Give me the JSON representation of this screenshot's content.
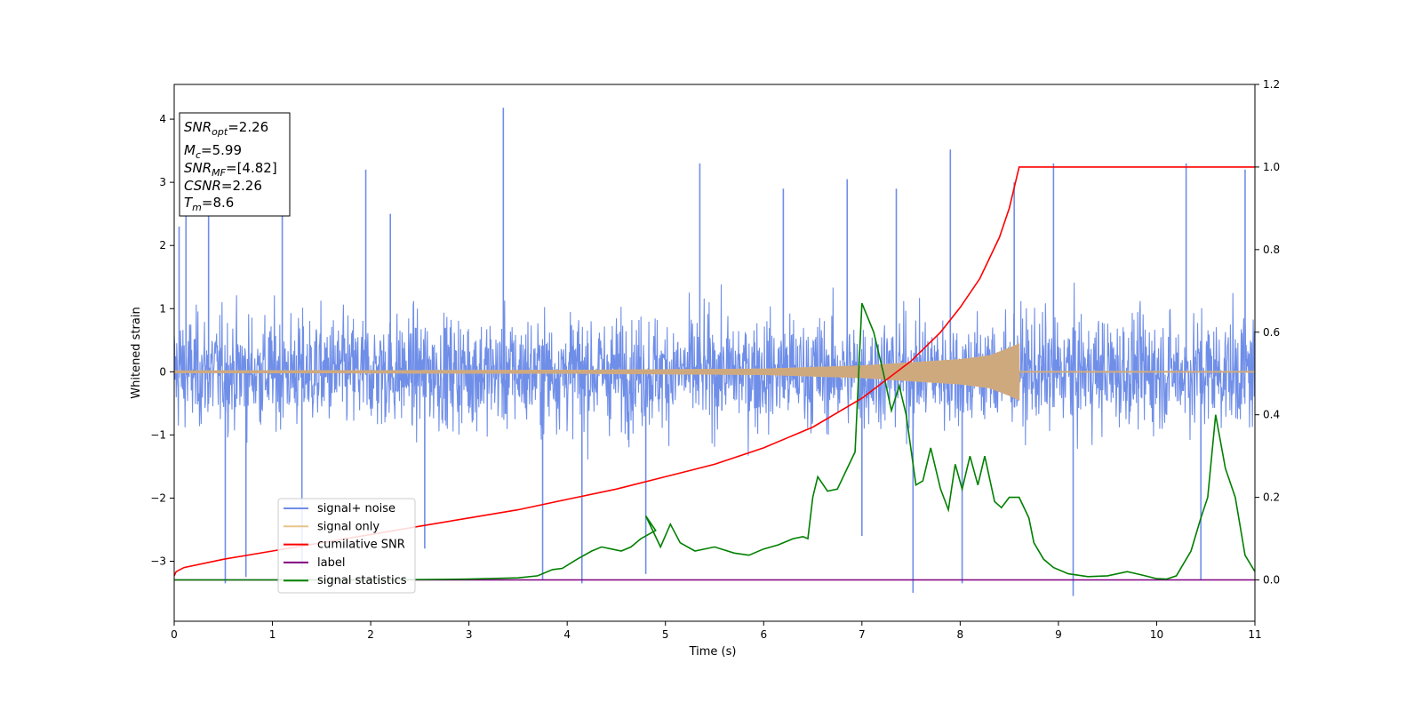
{
  "chart_data": {
    "type": "line",
    "title": "",
    "xlabel": "Time (s)",
    "ylabel": "Whitened strain",
    "ylabel_right": "",
    "xlim": [
      0,
      11
    ],
    "ylim": [
      -3.95,
      4.55
    ],
    "ylim_right": [
      -0.1,
      1.2
    ],
    "x_ticks": [
      0,
      1,
      2,
      3,
      4,
      5,
      6,
      7,
      8,
      9,
      10,
      11
    ],
    "y_ticks": [
      -3,
      -2,
      -1,
      0,
      1,
      2,
      3,
      4
    ],
    "y_ticks_right": [
      0.0,
      0.2,
      0.4,
      0.6,
      0.8,
      1.0,
      1.2
    ],
    "grid": false,
    "legend_position": "lower-left",
    "colors": {
      "noise": "#6f8ee8",
      "signal": "#e8c48a",
      "cumulative": "#ff0000",
      "label": "#800080",
      "statistics": "#008000"
    },
    "annotation": {
      "snr_opt": {
        "main": "SNR",
        "sub": "opt",
        "value": "=2.26"
      },
      "mc": {
        "main": "M",
        "sub": "c",
        "value": "=5.99"
      },
      "snr_mf": {
        "main": "SNR",
        "sub": "MF",
        "value": "=[4.82]"
      },
      "csnr": {
        "main": "CSNR",
        "value": "=2.26"
      },
      "tm": {
        "main": "T",
        "sub": "m",
        "value": "=8.6"
      }
    },
    "series": [
      {
        "name": "signal+ noise",
        "axis": "left",
        "description_values": "noise band about ±1.3 with spikes",
        "spikes": [
          {
            "x": 0.05,
            "y": 2.3
          },
          {
            "x": 0.12,
            "y": 2.6
          },
          {
            "x": 0.35,
            "y": 2.7
          },
          {
            "x": 0.52,
            "y": -3.35
          },
          {
            "x": 0.73,
            "y": -3.25
          },
          {
            "x": 1.1,
            "y": 2.9
          },
          {
            "x": 1.3,
            "y": -3.1
          },
          {
            "x": 1.95,
            "y": 3.2
          },
          {
            "x": 2.2,
            "y": 2.5
          },
          {
            "x": 2.55,
            "y": -2.8
          },
          {
            "x": 3.35,
            "y": 4.18
          },
          {
            "x": 3.75,
            "y": -3.3
          },
          {
            "x": 4.15,
            "y": -3.35
          },
          {
            "x": 4.8,
            "y": -3.2
          },
          {
            "x": 5.35,
            "y": 3.3
          },
          {
            "x": 6.2,
            "y": 2.9
          },
          {
            "x": 6.85,
            "y": 3.05
          },
          {
            "x": 7.0,
            "y": -2.6
          },
          {
            "x": 7.35,
            "y": 2.9
          },
          {
            "x": 7.52,
            "y": -3.5
          },
          {
            "x": 7.9,
            "y": 3.52
          },
          {
            "x": 8.02,
            "y": -3.35
          },
          {
            "x": 8.55,
            "y": 3.0
          },
          {
            "x": 8.95,
            "y": 3.3
          },
          {
            "x": 9.15,
            "y": -3.55
          },
          {
            "x": 10.3,
            "y": 3.3
          },
          {
            "x": 10.45,
            "y": -3.3
          },
          {
            "x": 10.9,
            "y": 3.2
          }
        ]
      },
      {
        "name": "signal only",
        "axis": "left",
        "t_merger": 8.6,
        "amplitude": [
          {
            "x": 0,
            "y": 0.02
          },
          {
            "x": 4,
            "y": 0.03
          },
          {
            "x": 6,
            "y": 0.05
          },
          {
            "x": 7,
            "y": 0.1
          },
          {
            "x": 7.5,
            "y": 0.15
          },
          {
            "x": 8,
            "y": 0.2
          },
          {
            "x": 8.3,
            "y": 0.26
          },
          {
            "x": 8.5,
            "y": 0.38
          },
          {
            "x": 8.6,
            "y": 0.45
          }
        ]
      },
      {
        "name": "cumilative SNR",
        "axis": "right",
        "points": [
          {
            "x": 0,
            "y": 0.01
          },
          {
            "x": 0.02,
            "y": 0.02
          },
          {
            "x": 0.1,
            "y": 0.03
          },
          {
            "x": 0.5,
            "y": 0.05
          },
          {
            "x": 1,
            "y": 0.07
          },
          {
            "x": 1.5,
            "y": 0.09
          },
          {
            "x": 2,
            "y": 0.11
          },
          {
            "x": 2.5,
            "y": 0.13
          },
          {
            "x": 3,
            "y": 0.15
          },
          {
            "x": 3.5,
            "y": 0.17
          },
          {
            "x": 4,
            "y": 0.195
          },
          {
            "x": 4.5,
            "y": 0.22
          },
          {
            "x": 5,
            "y": 0.25
          },
          {
            "x": 5.5,
            "y": 0.28
          },
          {
            "x": 6,
            "y": 0.32
          },
          {
            "x": 6.5,
            "y": 0.37
          },
          {
            "x": 7,
            "y": 0.44
          },
          {
            "x": 7.5,
            "y": 0.53
          },
          {
            "x": 7.8,
            "y": 0.6
          },
          {
            "x": 8,
            "y": 0.66
          },
          {
            "x": 8.2,
            "y": 0.73
          },
          {
            "x": 8.4,
            "y": 0.83
          },
          {
            "x": 8.5,
            "y": 0.9
          },
          {
            "x": 8.58,
            "y": 0.98
          },
          {
            "x": 8.6,
            "y": 1.0
          },
          {
            "x": 11,
            "y": 1.0
          }
        ]
      },
      {
        "name": "label",
        "axis": "right",
        "points": [
          {
            "x": 0,
            "y": 0.0
          },
          {
            "x": 11,
            "y": 0.0
          }
        ]
      },
      {
        "name": "signal statistics",
        "axis": "right",
        "points": [
          {
            "x": 0,
            "y": 0.0
          },
          {
            "x": 1,
            "y": 0.0
          },
          {
            "x": 2,
            "y": 0.0
          },
          {
            "x": 3,
            "y": 0.002
          },
          {
            "x": 3.5,
            "y": 0.005
          },
          {
            "x": 3.7,
            "y": 0.01
          },
          {
            "x": 3.85,
            "y": 0.025
          },
          {
            "x": 3.95,
            "y": 0.028
          },
          {
            "x": 4.1,
            "y": 0.05
          },
          {
            "x": 4.25,
            "y": 0.07
          },
          {
            "x": 4.35,
            "y": 0.08
          },
          {
            "x": 4.45,
            "y": 0.075
          },
          {
            "x": 4.55,
            "y": 0.07
          },
          {
            "x": 4.65,
            "y": 0.08
          },
          {
            "x": 4.75,
            "y": 0.1
          },
          {
            "x": 4.9,
            "y": 0.12
          },
          {
            "x": 4.8,
            "y": 0.155
          },
          {
            "x": 4.95,
            "y": 0.08
          },
          {
            "x": 5.05,
            "y": 0.135
          },
          {
            "x": 5.15,
            "y": 0.09
          },
          {
            "x": 5.3,
            "y": 0.07
          },
          {
            "x": 5.5,
            "y": 0.08
          },
          {
            "x": 5.7,
            "y": 0.065
          },
          {
            "x": 5.85,
            "y": 0.06
          },
          {
            "x": 6.0,
            "y": 0.075
          },
          {
            "x": 6.15,
            "y": 0.085
          },
          {
            "x": 6.3,
            "y": 0.1
          },
          {
            "x": 6.4,
            "y": 0.105
          },
          {
            "x": 6.45,
            "y": 0.1
          },
          {
            "x": 6.5,
            "y": 0.2
          },
          {
            "x": 6.55,
            "y": 0.25
          },
          {
            "x": 6.65,
            "y": 0.215
          },
          {
            "x": 6.75,
            "y": 0.22
          },
          {
            "x": 6.85,
            "y": 0.27
          },
          {
            "x": 6.93,
            "y": 0.31
          },
          {
            "x": 7.0,
            "y": 0.67
          },
          {
            "x": 7.12,
            "y": 0.6
          },
          {
            "x": 7.22,
            "y": 0.5
          },
          {
            "x": 7.3,
            "y": 0.41
          },
          {
            "x": 7.38,
            "y": 0.47
          },
          {
            "x": 7.45,
            "y": 0.4
          },
          {
            "x": 7.55,
            "y": 0.23
          },
          {
            "x": 7.62,
            "y": 0.24
          },
          {
            "x": 7.7,
            "y": 0.32
          },
          {
            "x": 7.8,
            "y": 0.22
          },
          {
            "x": 7.88,
            "y": 0.17
          },
          {
            "x": 7.95,
            "y": 0.28
          },
          {
            "x": 8.02,
            "y": 0.22
          },
          {
            "x": 8.1,
            "y": 0.3
          },
          {
            "x": 8.18,
            "y": 0.23
          },
          {
            "x": 8.25,
            "y": 0.3
          },
          {
            "x": 8.35,
            "y": 0.19
          },
          {
            "x": 8.42,
            "y": 0.175
          },
          {
            "x": 8.5,
            "y": 0.2
          },
          {
            "x": 8.6,
            "y": 0.2
          },
          {
            "x": 8.7,
            "y": 0.15
          },
          {
            "x": 8.75,
            "y": 0.09
          },
          {
            "x": 8.85,
            "y": 0.05
          },
          {
            "x": 8.95,
            "y": 0.03
          },
          {
            "x": 9.1,
            "y": 0.015
          },
          {
            "x": 9.3,
            "y": 0.008
          },
          {
            "x": 9.5,
            "y": 0.01
          },
          {
            "x": 9.7,
            "y": 0.02
          },
          {
            "x": 9.85,
            "y": 0.012
          },
          {
            "x": 10.0,
            "y": 0.003
          },
          {
            "x": 10.1,
            "y": 0.002
          },
          {
            "x": 10.2,
            "y": 0.01
          },
          {
            "x": 10.35,
            "y": 0.07
          },
          {
            "x": 10.45,
            "y": 0.15
          },
          {
            "x": 10.52,
            "y": 0.2
          },
          {
            "x": 10.6,
            "y": 0.4
          },
          {
            "x": 10.7,
            "y": 0.27
          },
          {
            "x": 10.8,
            "y": 0.2
          },
          {
            "x": 10.9,
            "y": 0.06
          },
          {
            "x": 11.0,
            "y": 0.02
          }
        ]
      }
    ]
  }
}
